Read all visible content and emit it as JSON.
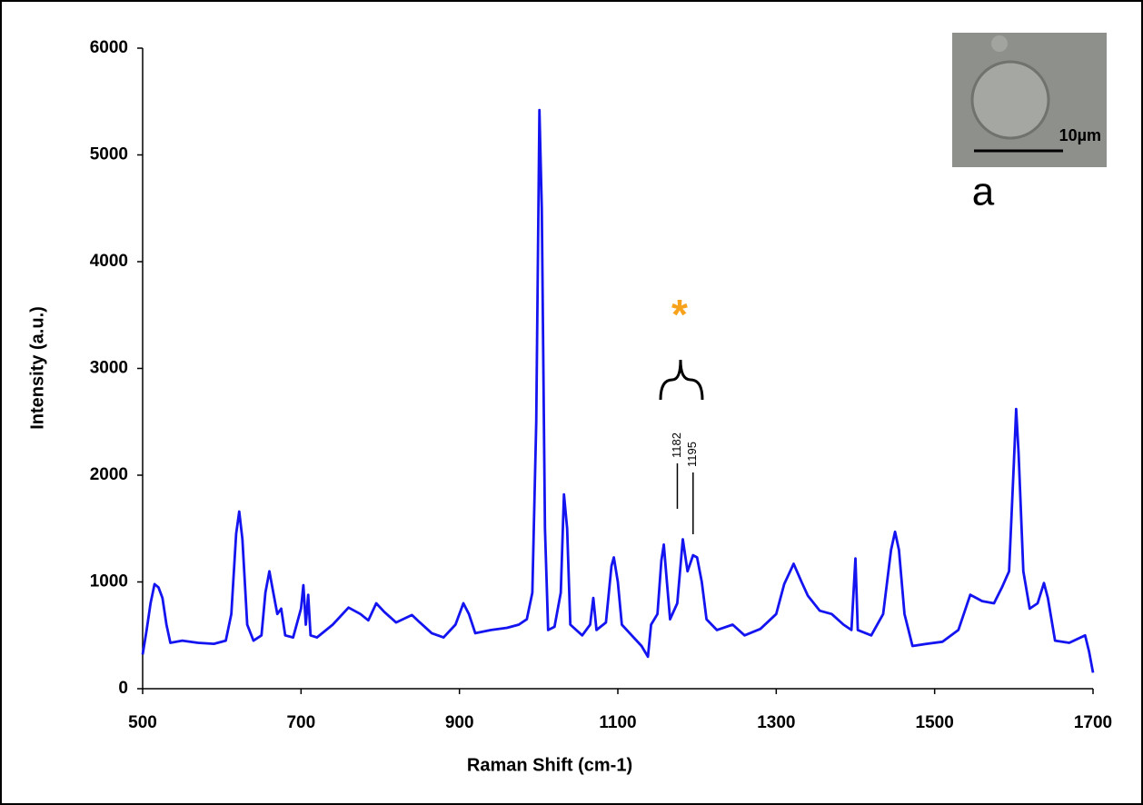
{
  "chart_data": {
    "type": "line",
    "x_label": "Raman Shift (cm-1)",
    "y_label": "Intensity (a.u.)",
    "xlim": [
      500,
      1700
    ],
    "xticks": [
      500,
      700,
      900,
      1100,
      1300,
      1500,
      1700
    ],
    "ylim": [
      0,
      6000
    ],
    "yticks": [
      0,
      1000,
      2000,
      3000,
      4000,
      5000,
      6000
    ],
    "grid": false,
    "series": [
      {
        "color": "#1414f0",
        "x": [
          500,
          505,
          510,
          515,
          520,
          525,
          530,
          535,
          550,
          570,
          590,
          605,
          612,
          618,
          622,
          626,
          632,
          640,
          650,
          655,
          660,
          665,
          670,
          675,
          680,
          690,
          700,
          703,
          706,
          709,
          712,
          720,
          740,
          760,
          775,
          785,
          795,
          805,
          820,
          840,
          850,
          865,
          880,
          895,
          905,
          912,
          920,
          940,
          960,
          975,
          985,
          992,
          997,
          1001,
          1004,
          1008,
          1012,
          1020,
          1028,
          1032,
          1036,
          1040,
          1055,
          1065,
          1069,
          1073,
          1085,
          1092,
          1095,
          1100,
          1105,
          1115,
          1130,
          1138,
          1142,
          1150,
          1155,
          1158,
          1162,
          1166,
          1175,
          1182,
          1188,
          1195,
          1200,
          1206,
          1212,
          1225,
          1245,
          1260,
          1280,
          1300,
          1310,
          1322,
          1332,
          1340,
          1355,
          1370,
          1385,
          1395,
          1400,
          1403,
          1420,
          1435,
          1445,
          1450,
          1455,
          1462,
          1472,
          1490,
          1510,
          1530,
          1545,
          1560,
          1575,
          1585,
          1594,
          1600,
          1603,
          1606,
          1612,
          1620,
          1630,
          1638,
          1643,
          1652,
          1670,
          1690,
          1695,
          1700
        ],
        "values": [
          320,
          550,
          800,
          980,
          950,
          850,
          600,
          430,
          450,
          430,
          420,
          450,
          700,
          1450,
          1660,
          1400,
          600,
          450,
          500,
          900,
          1100,
          900,
          700,
          750,
          500,
          480,
          750,
          970,
          600,
          880,
          500,
          480,
          600,
          760,
          700,
          640,
          800,
          720,
          620,
          690,
          620,
          520,
          480,
          600,
          800,
          700,
          520,
          550,
          570,
          600,
          650,
          900,
          2500,
          5420,
          4500,
          1500,
          550,
          580,
          900,
          1820,
          1500,
          600,
          500,
          600,
          850,
          550,
          620,
          1150,
          1230,
          1000,
          600,
          520,
          400,
          300,
          600,
          700,
          1200,
          1350,
          1000,
          650,
          800,
          1400,
          1100,
          1250,
          1230,
          1000,
          650,
          550,
          600,
          500,
          560,
          700,
          980,
          1170,
          1000,
          870,
          730,
          700,
          600,
          550,
          1220,
          550,
          500,
          700,
          1300,
          1470,
          1300,
          700,
          400,
          420,
          440,
          550,
          880,
          820,
          800,
          950,
          1100,
          2100,
          2620,
          2200,
          1100,
          750,
          800,
          990,
          850,
          450,
          430,
          500,
          350,
          150
        ]
      }
    ],
    "annotation": "*",
    "peak_markers": [
      1182,
      1195
    ],
    "inset": {
      "scale_label": "10µm",
      "panel_label": "a"
    }
  }
}
